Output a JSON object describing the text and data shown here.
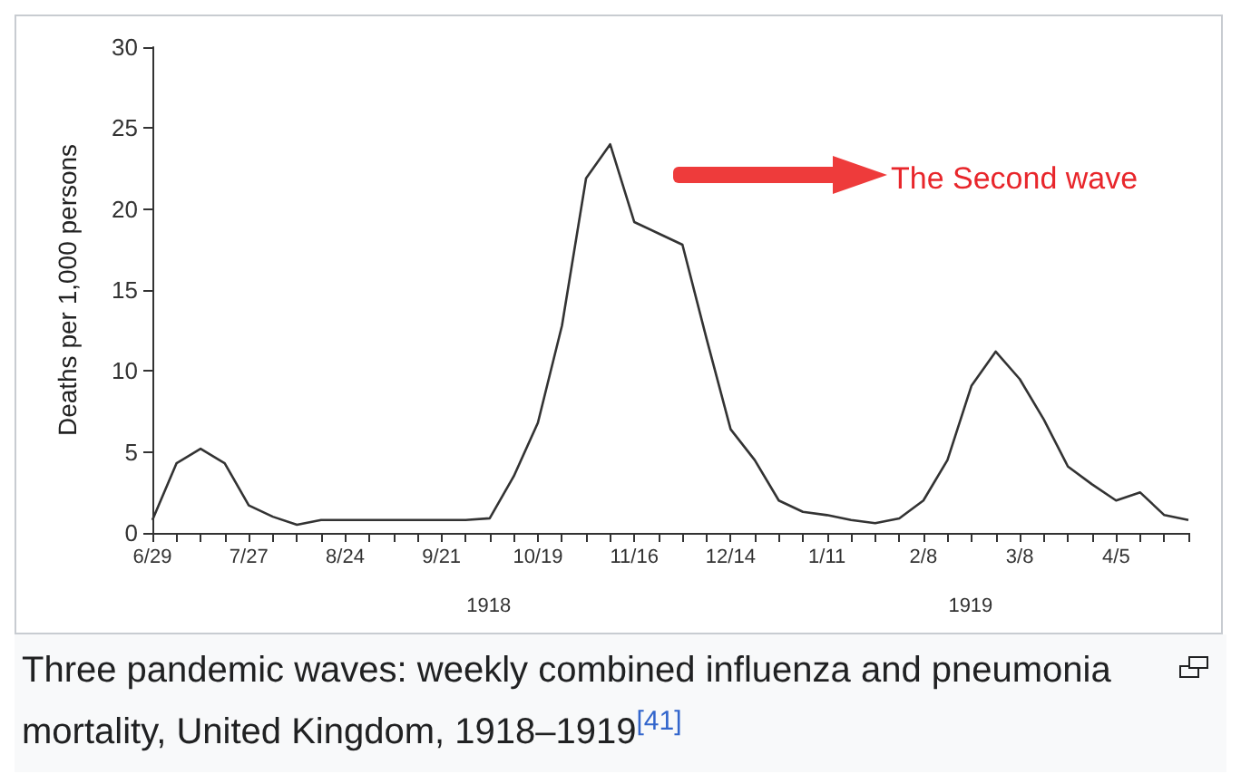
{
  "chart_data": {
    "type": "line",
    "ylabel": "Deaths per 1,000 persons",
    "categories": [
      "6/29",
      null,
      null,
      null,
      "7/27",
      null,
      null,
      null,
      "8/24",
      null,
      null,
      null,
      "9/21",
      null,
      null,
      null,
      "10/19",
      null,
      null,
      null,
      "11/16",
      null,
      null,
      null,
      "12/14",
      null,
      null,
      null,
      "1/11",
      null,
      null,
      null,
      "2/8",
      null,
      null,
      null,
      "3/8",
      null,
      null,
      null,
      "4/5",
      null,
      null,
      null
    ],
    "series": [
      {
        "color": "#333333",
        "values": [
          0.8,
          4.3,
          5.2,
          4.3,
          1.7,
          1.0,
          0.5,
          0.8,
          0.8,
          0.8,
          0.8,
          0.8,
          0.8,
          0.8,
          0.9,
          3.5,
          6.8,
          12.8,
          21.9,
          24,
          19.2,
          18.5,
          17.8,
          12,
          6.4,
          4.5,
          2.0,
          1.3,
          1.1,
          0.8,
          0.6,
          0.9,
          2.0,
          4.5,
          9.1,
          11.2,
          9.5,
          7.0,
          4.1,
          3.0,
          2.0,
          2.5,
          1.1,
          0.8
        ]
      }
    ],
    "ylim": [
      0,
      30
    ],
    "yticks": [
      0,
      5,
      10,
      15,
      20,
      25,
      30
    ],
    "grid": false,
    "marker": "none",
    "line_style": "solid",
    "annotations": [
      "1918",
      "1919",
      "The Second wave",
      "Three pandemic waves: weekly combined influenza and pneumonia mortality, United Kingdom, 1918–1919$^{[41]}$"
    ]
  }
}
